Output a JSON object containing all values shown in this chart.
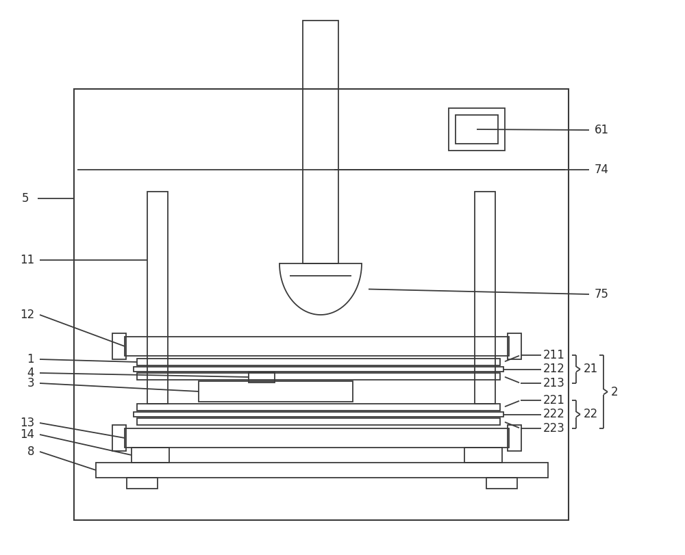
{
  "bg_color": "#ffffff",
  "line_color": "#3a3a3a",
  "label_color": "#2a2a2a",
  "figsize": [
    10.0,
    8.11
  ],
  "dpi": 100
}
